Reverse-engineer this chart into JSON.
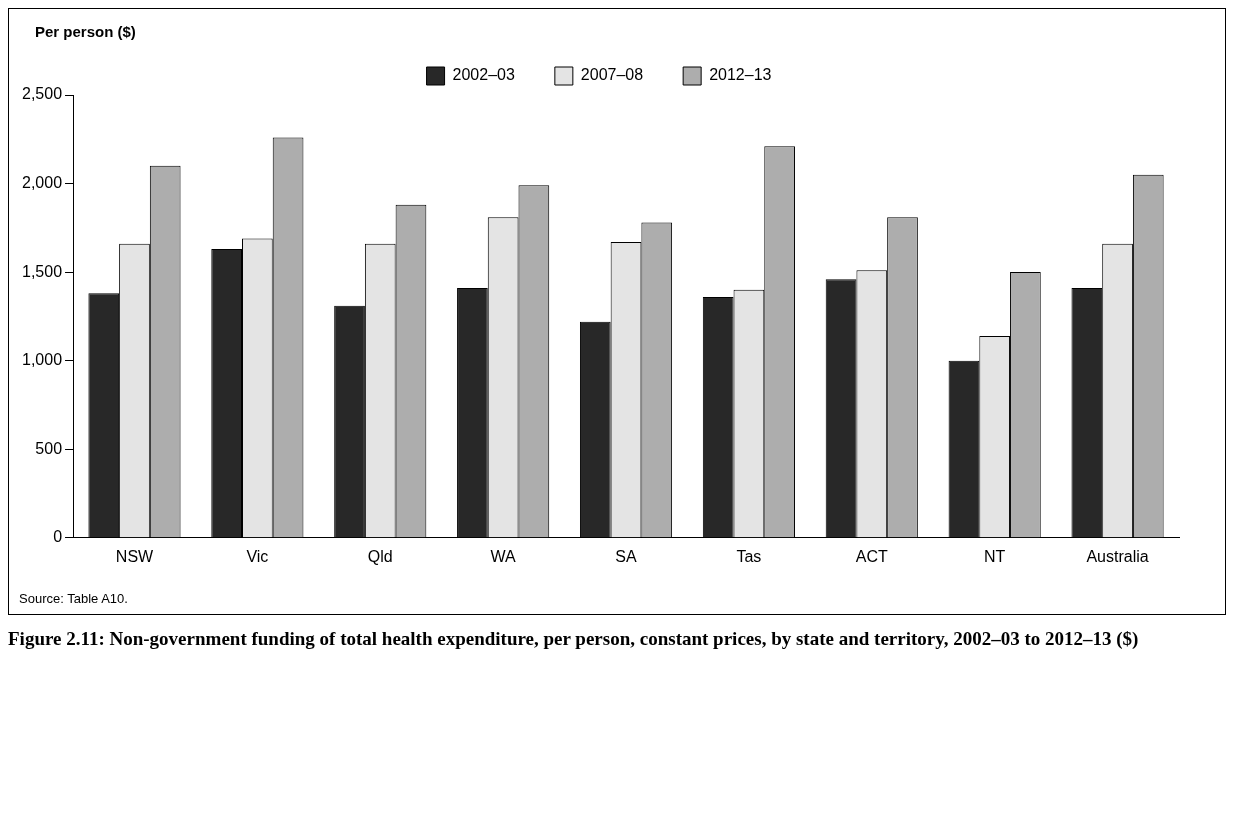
{
  "chart_data": {
    "type": "bar",
    "title": "Figure 2.11: Non-government funding of total health expenditure, per person, constant prices, by state and territory, 2002–03 to 2012–13 ($)",
    "ylabel": "Per person ($)",
    "annotations": [
      "Source: Table A10."
    ],
    "categories": [
      "NSW",
      "Vic",
      "Qld",
      "WA",
      "SA",
      "Tas",
      "ACT",
      "NT",
      "Australia"
    ],
    "series": [
      {
        "name": "2002–03",
        "color": "#282828",
        "values": [
          1380,
          1630,
          1310,
          1410,
          1220,
          1360,
          1460,
          1000,
          1410
        ]
      },
      {
        "name": "2007–08",
        "color": "#e4e4e4",
        "values": [
          1660,
          1690,
          1660,
          1810,
          1670,
          1400,
          1510,
          1140,
          1660
        ]
      },
      {
        "name": "2012–13",
        "color": "#adadad",
        "values": [
          2100,
          2260,
          1880,
          1990,
          1780,
          2210,
          1810,
          1500,
          2050
        ]
      }
    ],
    "ylim": [
      0,
      2500
    ],
    "yticks": [
      0,
      500,
      {
        "value": 1000,
        "label": "1,000"
      },
      {
        "value": 1500,
        "label": "1,500"
      },
      {
        "value": 2000,
        "label": "2,000"
      },
      {
        "value": 2500,
        "label": "2,500"
      }
    ],
    "grid": false,
    "legend": "top"
  }
}
